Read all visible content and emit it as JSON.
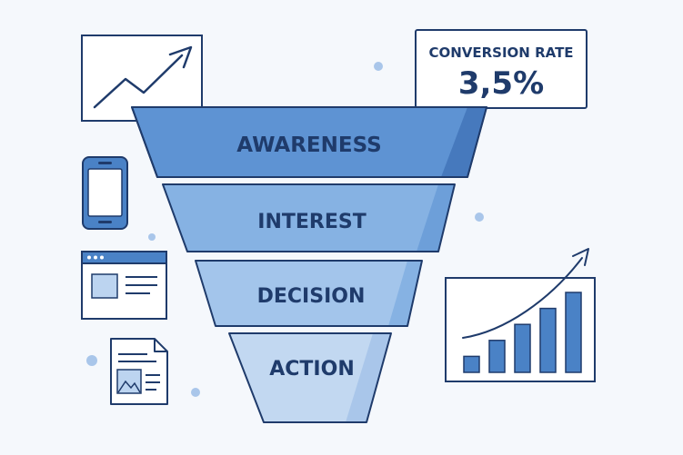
{
  "conversion_card": {
    "title": "CONVERSION RATE",
    "value": "3,5%"
  },
  "funnel": {
    "stages": [
      {
        "label": "AWARENESS",
        "color": "#5e93d3"
      },
      {
        "label": "INTEREST",
        "color": "#86b2e3"
      },
      {
        "label": "DECISION",
        "color": "#a3c5eb"
      },
      {
        "label": "ACTION",
        "color": "#c2d8f1"
      }
    ]
  },
  "bar_chart": {
    "values": [
      1,
      2,
      3,
      4,
      5
    ]
  },
  "colors": {
    "outline": "#1f3b6b",
    "accent": "#4a82c6",
    "light": "#bcd4f0",
    "background": "#f5f8fc",
    "dot": "#a9c6ea"
  },
  "icons": [
    "trend-chart-icon",
    "smartphone-icon",
    "browser-window-icon",
    "document-icon",
    "growth-bar-chart-icon"
  ]
}
